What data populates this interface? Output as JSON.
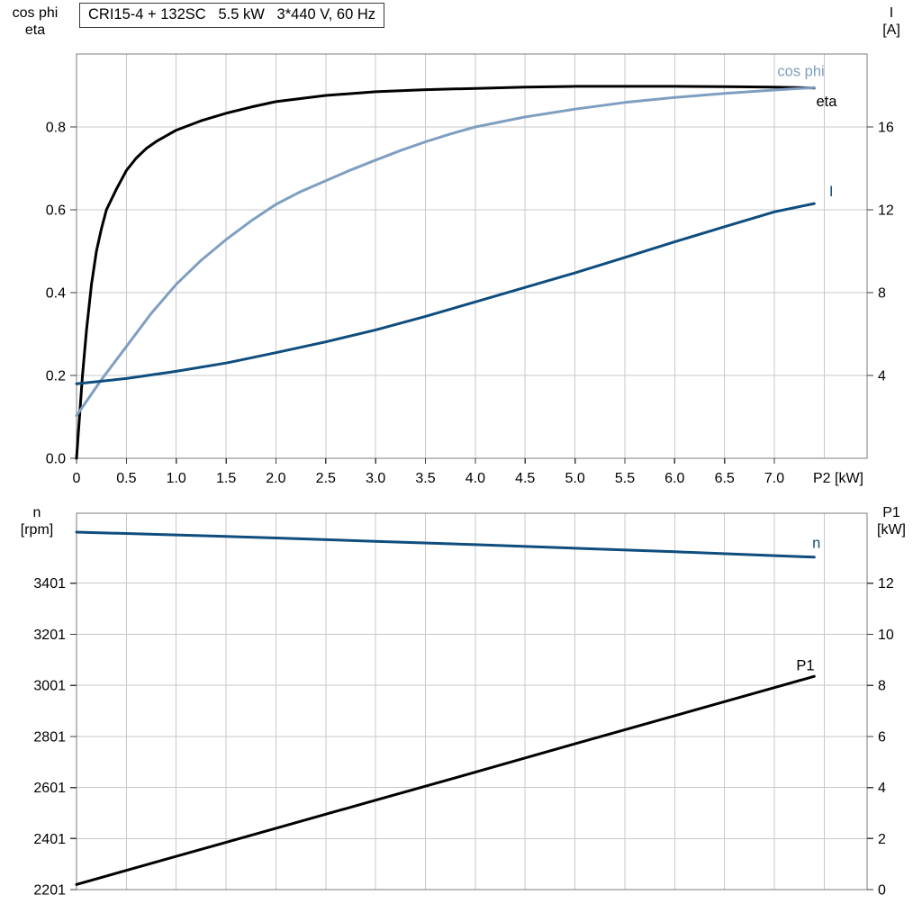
{
  "colors": {
    "grid": "#c9c9c9",
    "frame": "#7d7d7d",
    "tick": "#3c3c3c",
    "black_curve": "#000000",
    "cos_phi_curve": "#7f9fc1",
    "dark_blue_curve": "#0e4d7e"
  },
  "chart_data": [
    {
      "name": "motor-electrical-curves",
      "type": "line",
      "title": "CRI15-4 + 132SC   5.5 kW   3*440 V, 60 Hz",
      "x_axis": {
        "label": "P2 [kW]",
        "min": 0,
        "max": 7.93,
        "grid_step": 0.5,
        "tick_values": [
          0,
          0.5,
          1,
          1.5,
          2,
          2.5,
          3,
          3.5,
          4,
          4.5,
          5,
          5.5,
          6,
          6.5,
          7
        ],
        "tick_labels": [
          "0",
          "0.5",
          "1.0",
          "1.5",
          "2.0",
          "2.5",
          "3.0",
          "3.5",
          "4.0",
          "4.5",
          "5.0",
          "5.5",
          "6.0",
          "6.5",
          "7.0"
        ]
      },
      "left_axis": {
        "title_lines": [
          "cos phi",
          "eta"
        ],
        "min": 0,
        "max": 0.976,
        "ticks": [
          0,
          0.2,
          0.4,
          0.6,
          0.8
        ],
        "tick_labels": [
          "0.0",
          "0.2",
          "0.4",
          "0.6",
          "0.8"
        ]
      },
      "right_axis": {
        "title_lines": [
          "I",
          "[A]"
        ],
        "min": 0,
        "max": 19.52,
        "ticks": [
          4,
          8,
          12,
          16
        ],
        "tick_labels": [
          "4",
          "8",
          "12",
          "16"
        ]
      },
      "series": [
        {
          "id": "eta",
          "name": "eta",
          "axis": "left",
          "color": "#000000",
          "x": [
            0,
            0.03,
            0.06,
            0.1,
            0.15,
            0.2,
            0.25,
            0.3,
            0.4,
            0.5,
            0.6,
            0.7,
            0.8,
            1.0,
            1.25,
            1.5,
            1.75,
            2.0,
            2.5,
            3.0,
            3.5,
            4.0,
            4.5,
            5.0,
            5.5,
            6.0,
            6.5,
            7.0,
            7.4
          ],
          "values": [
            0,
            0.1,
            0.2,
            0.31,
            0.42,
            0.5,
            0.555,
            0.6,
            0.65,
            0.695,
            0.725,
            0.748,
            0.765,
            0.792,
            0.815,
            0.833,
            0.848,
            0.861,
            0.876,
            0.885,
            0.89,
            0.893,
            0.896,
            0.898,
            0.898,
            0.898,
            0.897,
            0.896,
            0.894
          ],
          "label": {
            "text": "eta",
            "x": 7.42,
            "y": 0.862
          }
        },
        {
          "id": "cos-phi",
          "name": "cos phi",
          "axis": "left",
          "color": "#7f9fc1",
          "x": [
            0,
            0.25,
            0.5,
            0.75,
            1.0,
            1.25,
            1.5,
            1.75,
            2.0,
            2.25,
            2.5,
            2.75,
            3.0,
            3.25,
            3.5,
            3.75,
            4.0,
            4.5,
            5.0,
            5.5,
            6.0,
            6.5,
            7.0,
            7.4
          ],
          "values": [
            0.103,
            0.19,
            0.27,
            0.35,
            0.42,
            0.478,
            0.528,
            0.573,
            0.613,
            0.644,
            0.67,
            0.696,
            0.72,
            0.743,
            0.764,
            0.783,
            0.8,
            0.824,
            0.843,
            0.859,
            0.871,
            0.881,
            0.889,
            0.895
          ],
          "label": {
            "text": "cos phi",
            "x": 7.03,
            "y": 0.935
          }
        },
        {
          "id": "current",
          "name": "I",
          "axis": "right",
          "color": "#0e4d7e",
          "x": [
            0,
            0.5,
            1.0,
            1.5,
            2.0,
            2.5,
            3.0,
            3.5,
            4.0,
            4.5,
            5.0,
            5.5,
            6.0,
            6.5,
            7.0,
            7.4
          ],
          "values": [
            3.6,
            3.85,
            4.2,
            4.6,
            5.1,
            5.62,
            6.2,
            6.85,
            7.55,
            8.25,
            8.95,
            9.7,
            10.45,
            11.18,
            11.9,
            12.3
          ],
          "label": {
            "text": "I",
            "x": 7.55,
            "y": 12.9
          }
        }
      ]
    },
    {
      "name": "speed-power-curves",
      "type": "line",
      "x_axis": {
        "min": 0,
        "max": 7.93,
        "grid_step": 0.5
      },
      "left_axis": {
        "title_lines": [
          "n",
          "[rpm]"
        ],
        "min": 2201,
        "max": 3675,
        "ticks": [
          2201,
          2401,
          2601,
          2801,
          3001,
          3201,
          3401
        ],
        "tick_labels": [
          "2201",
          "2401",
          "2601",
          "2801",
          "3001",
          "3201",
          "3401"
        ]
      },
      "right_axis": {
        "title_lines": [
          "P1",
          "[kW]"
        ],
        "min": 0,
        "max": 14.74,
        "ticks": [
          0,
          2,
          4,
          6,
          8,
          10,
          12
        ],
        "tick_labels": [
          "0",
          "2",
          "4",
          "6",
          "8",
          "10",
          "12"
        ]
      },
      "series": [
        {
          "id": "speed",
          "name": "n",
          "axis": "left",
          "color": "#0e4d7e",
          "x": [
            0,
            1,
            2,
            3,
            4,
            5,
            6,
            7,
            7.4
          ],
          "values": [
            3601,
            3590,
            3578,
            3565,
            3552,
            3538,
            3524,
            3509,
            3503
          ],
          "label": {
            "text": "n",
            "x": 7.38,
            "y": 3558
          }
        },
        {
          "id": "p1",
          "name": "P1",
          "axis": "right",
          "color": "#000000",
          "x": [
            0,
            1,
            2,
            3,
            4,
            5,
            6,
            7,
            7.4
          ],
          "values": [
            0.2,
            1.3,
            2.4,
            3.5,
            4.6,
            5.71,
            6.81,
            7.91,
            8.35
          ],
          "label": {
            "text": "P1",
            "x": 7.22,
            "y": 8.78
          }
        }
      ]
    }
  ]
}
